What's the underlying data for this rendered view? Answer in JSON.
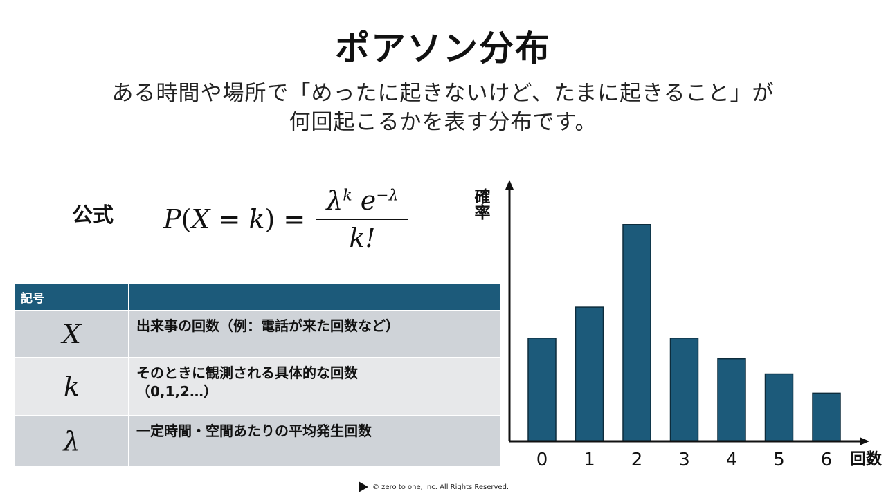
{
  "title": "ポアソン分布",
  "subtitle": {
    "line1": "ある時間や場所で「めったに起きないけど、たまに起きること」が",
    "line2": "何回起こるかを表す分布です。"
  },
  "formula": {
    "label": "公式",
    "lhs_p": "P",
    "lhs_open": "(",
    "lhs_var": "X",
    "lhs_eq": " = ",
    "lhs_k": "k",
    "lhs_close": ")",
    "equals": " = ",
    "numerator_lambda": "λ",
    "numerator_exp": "k",
    "numerator_e": "e",
    "numerator_exp2": "−λ",
    "denominator": "k!"
  },
  "symbols": {
    "header": [
      "記号",
      ""
    ],
    "rows": [
      {
        "symbol": "X",
        "desc1": "出来事の回数（例：電話が来た回数など）",
        "desc2": ""
      },
      {
        "symbol": "k",
        "desc1": "そのときに観測される具体的な回数",
        "desc2": "（0,1,2…）"
      },
      {
        "symbol": "λ",
        "desc1": "一定時間・空間あたりの平均発生回数",
        "desc2": ""
      }
    ]
  },
  "chart_data": {
    "type": "bar",
    "categories": [
      "0",
      "1",
      "2",
      "3",
      "4",
      "5",
      "6"
    ],
    "values": [
      0.15,
      0.195,
      0.315,
      0.15,
      0.12,
      0.098,
      0.07
    ],
    "ylabel": "確率",
    "xlabel": "回数",
    "ylim": [
      0,
      0.36
    ],
    "bar_color": "#1c5a7a",
    "grid": false
  },
  "footer": {
    "logo_icon": "play-triangle-icon",
    "text": "©  zero to one, Inc. All Rights Reserved."
  }
}
